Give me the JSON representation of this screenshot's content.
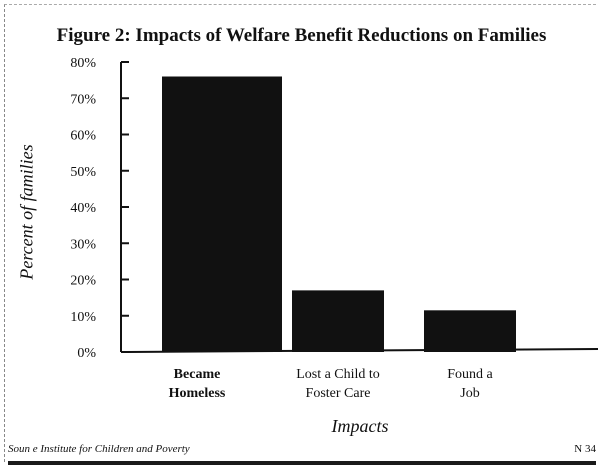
{
  "chart_data": {
    "type": "bar",
    "title": "Figure 2: Impacts of Welfare Benefit Reductions on Families",
    "xlabel": "Impacts",
    "ylabel": "Percent of families",
    "categories": [
      [
        "Became",
        "Homeless"
      ],
      [
        "Lost a Child to",
        "Foster Care"
      ],
      [
        "Found a",
        "Job"
      ]
    ],
    "values": [
      76,
      17,
      11.5
    ],
    "ylim": [
      0,
      80
    ],
    "y_ticks": [
      {
        "value": 0,
        "label": "0%"
      },
      {
        "value": 10,
        "label": "10%"
      },
      {
        "value": 20,
        "label": "20%"
      },
      {
        "value": 30,
        "label": "30%"
      },
      {
        "value": 40,
        "label": "40%"
      },
      {
        "value": 50,
        "label": "50%"
      },
      {
        "value": 60,
        "label": "60%"
      },
      {
        "value": 70,
        "label": "70%"
      },
      {
        "value": 80,
        "label": "80%"
      }
    ],
    "grid": false,
    "bar_color": "#111111"
  },
  "footer": {
    "source": "Soun e  Institute for Children and Poverty",
    "page": "N    34"
  }
}
